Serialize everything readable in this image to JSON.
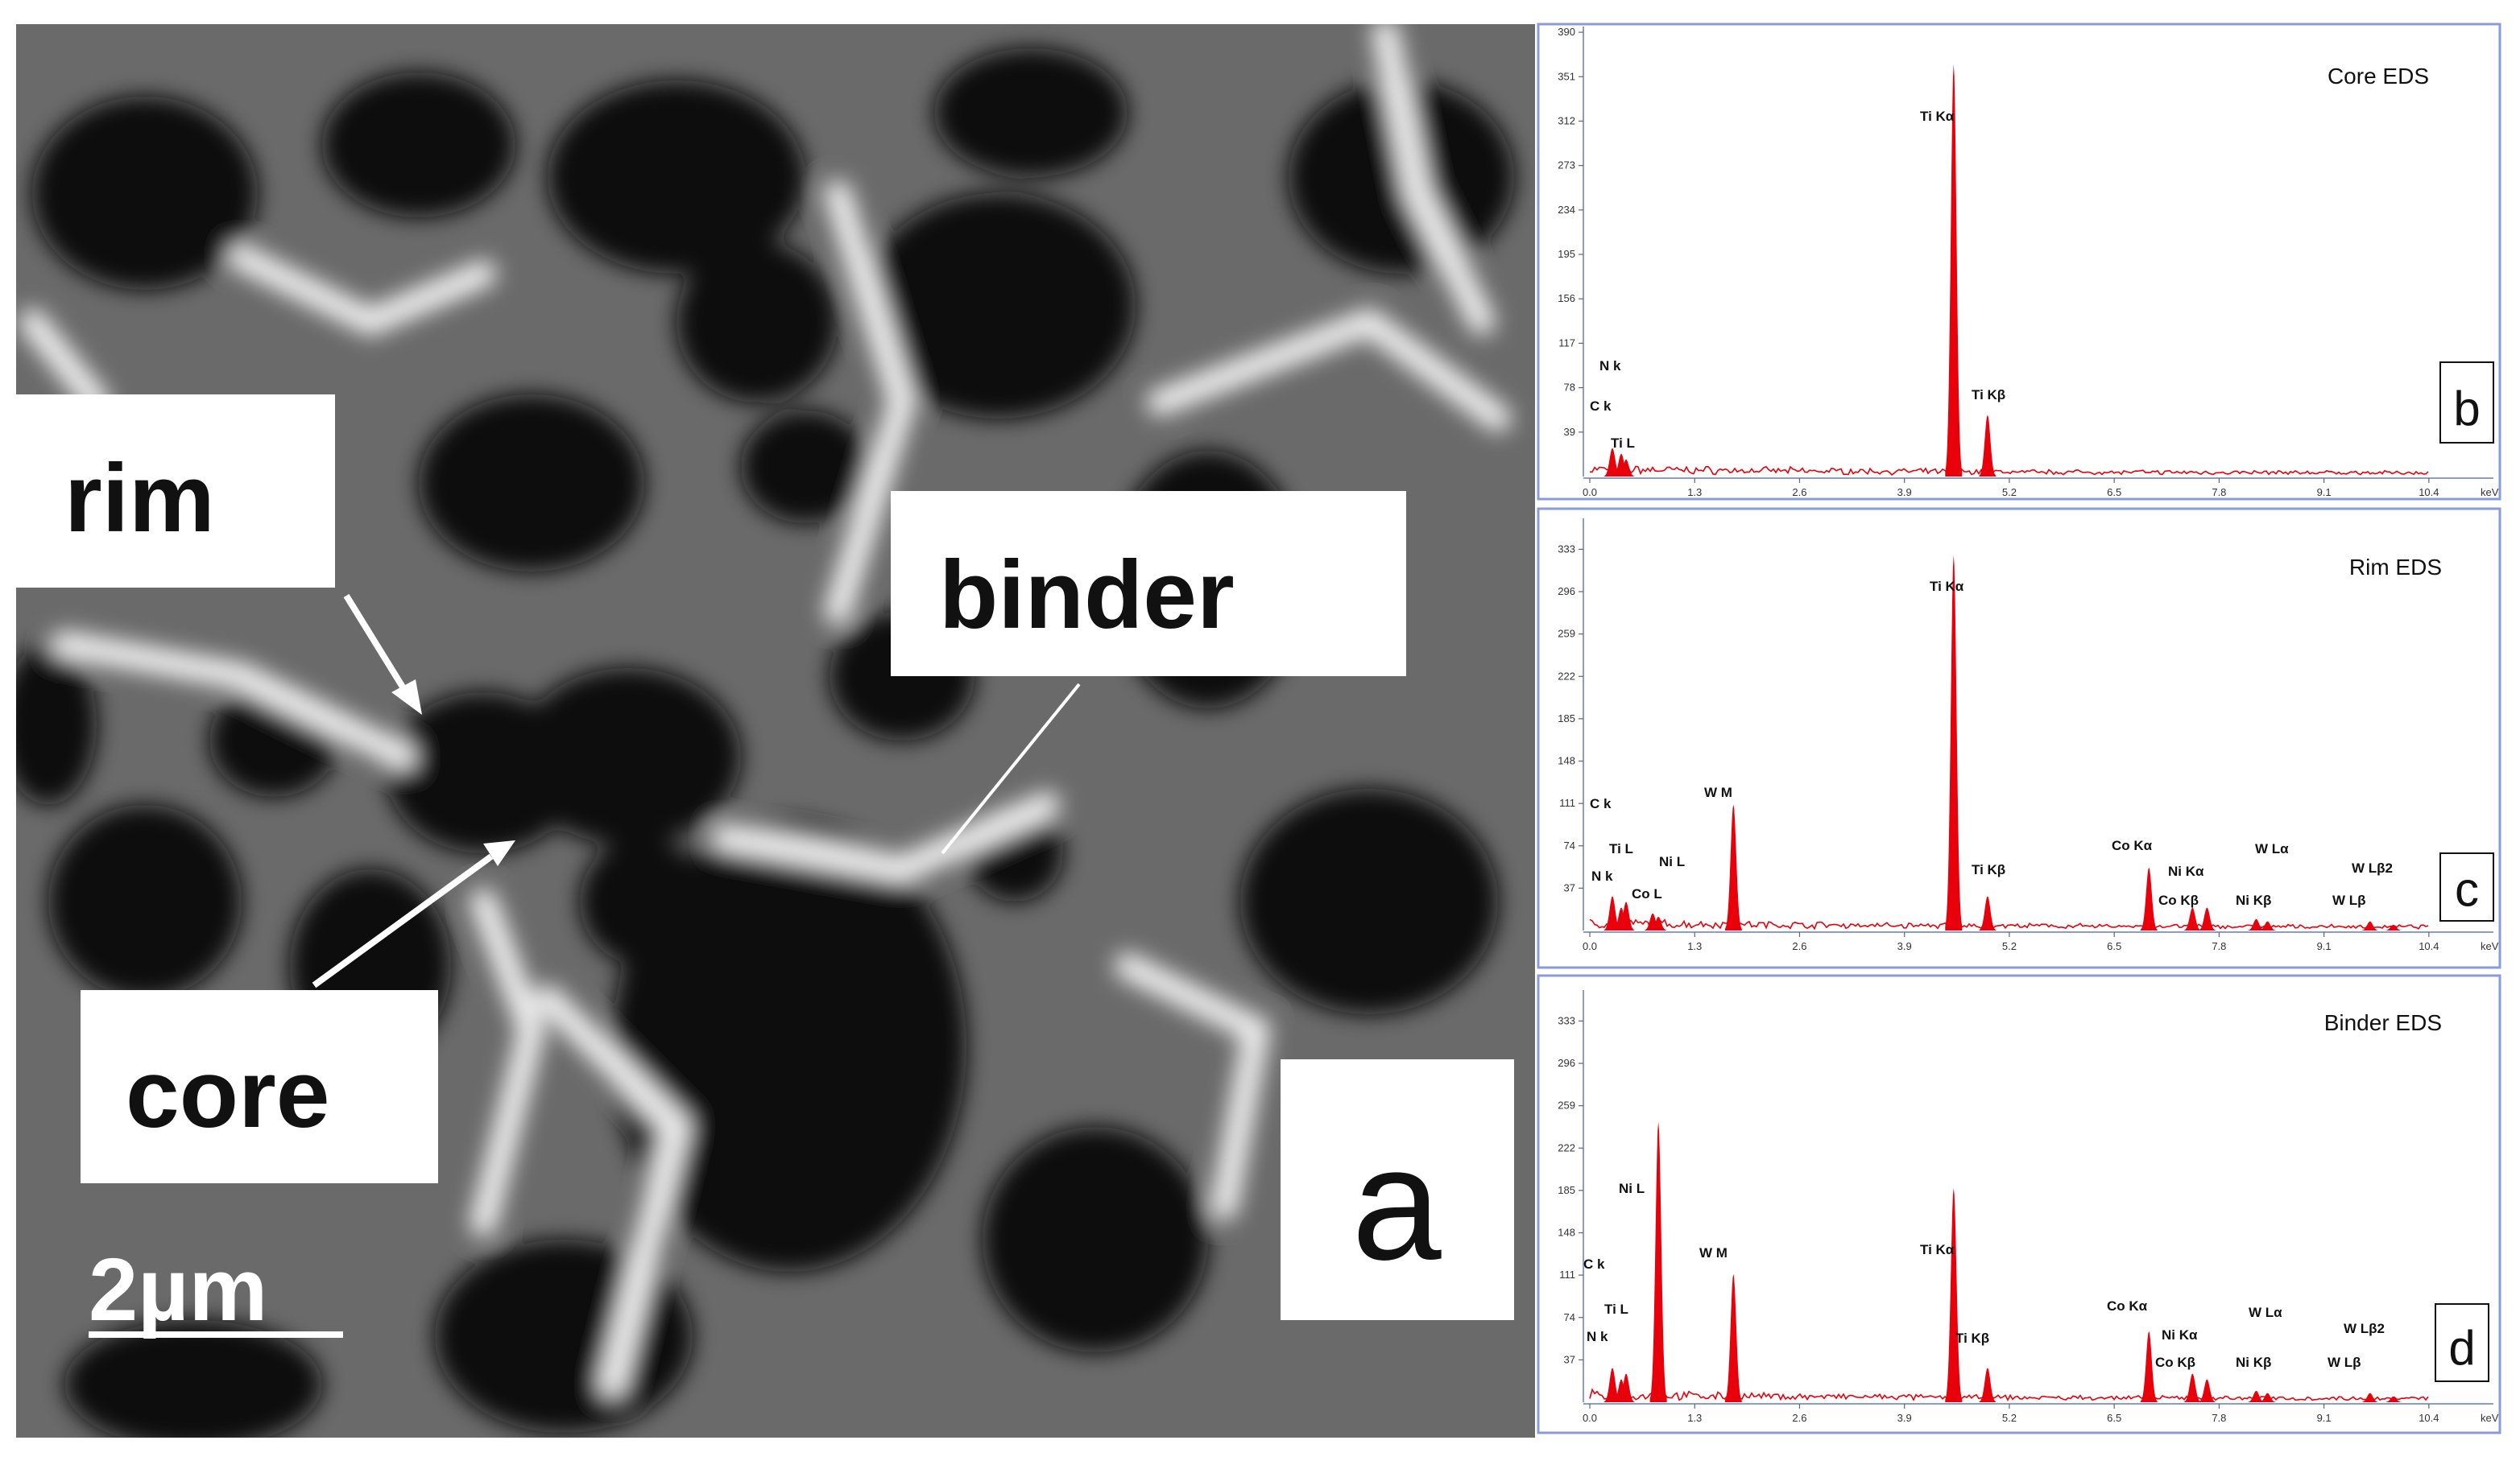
{
  "image": {
    "panel": "a",
    "labels": [
      "rim",
      "binder",
      "core"
    ],
    "scale_bar": "2µm"
  },
  "chart_data": [
    {
      "type": "spectrum",
      "title": "Core EDS",
      "panel": "b",
      "xlabel": "keV",
      "color": "#e8000b",
      "xlim": [
        0,
        11.2
      ],
      "ylim": [
        0,
        395
      ],
      "xticks": [
        {
          "value": 0,
          "label": "0.0"
        },
        1.3,
        2.6,
        3.9,
        5.2,
        6.5,
        7.8,
        9.1,
        10.4
      ],
      "yticks": [
        39,
        78,
        117,
        156,
        195,
        234,
        273,
        312,
        351,
        390
      ],
      "labels": [
        "C k",
        "N k",
        "Ti L",
        "Ti Kα",
        "Ti Kβ"
      ],
      "x": [
        0.28,
        0.39,
        0.45,
        4.51,
        4.93
      ],
      "values": [
        25,
        20,
        15,
        362,
        54
      ]
    },
    {
      "type": "spectrum",
      "title": "Rim EDS",
      "panel": "c",
      "xlabel": "keV",
      "color": "#e8000b",
      "xlim": [
        0,
        11.2
      ],
      "ylim": [
        0,
        360
      ],
      "xticks": [
        {
          "value": 0,
          "label": "0.0"
        },
        1.3,
        2.6,
        3.9,
        5.2,
        6.5,
        7.8,
        9.1,
        10.4
      ],
      "yticks": [
        37,
        74,
        111,
        148,
        185,
        222,
        259,
        296,
        333
      ],
      "labels": [
        "C k",
        "Ti L",
        "N k",
        "Co L",
        "Ni L",
        "W M",
        "Ti Kα",
        "Ti Kβ",
        "Co Kα",
        "Ni Kα",
        "Co Kβ",
        "W Lα",
        "Ni Kβ",
        "W Lβ2",
        "W Lβ"
      ],
      "x": [
        0.28,
        0.45,
        0.39,
        0.78,
        0.85,
        1.78,
        4.51,
        4.93,
        6.93,
        7.47,
        7.65,
        8.4,
        8.26,
        9.96,
        9.67
      ],
      "values": [
        30,
        25,
        20,
        15,
        12,
        110,
        328,
        30,
        55,
        20,
        20,
        8,
        10,
        5,
        8
      ]
    },
    {
      "type": "spectrum",
      "title": "Binder EDS",
      "panel": "d",
      "xlabel": "keV",
      "color": "#e8000b",
      "xlim": [
        0,
        11.2
      ],
      "ylim": [
        0,
        360
      ],
      "xticks": [
        {
          "value": 0,
          "label": "0.0"
        },
        1.3,
        2.6,
        3.9,
        5.2,
        6.5,
        7.8,
        9.1,
        10.4
      ],
      "yticks": [
        37,
        74,
        111,
        148,
        185,
        222,
        259,
        296,
        333
      ],
      "labels": [
        "C k",
        "Ti L",
        "N k",
        "Ni L",
        "W M",
        "Ti Kα",
        "Ti Kβ",
        "Co Kα",
        "Ni Kα",
        "Co Kβ",
        "W Lα",
        "Ni Kβ",
        "W Lβ2",
        "W Lβ"
      ],
      "x": [
        0.28,
        0.45,
        0.39,
        0.85,
        1.78,
        4.51,
        4.93,
        6.93,
        7.47,
        7.65,
        8.4,
        8.26,
        9.96,
        9.67
      ],
      "values": [
        30,
        25,
        20,
        245,
        112,
        187,
        30,
        62,
        25,
        20,
        8,
        10,
        5,
        8
      ]
    }
  ]
}
